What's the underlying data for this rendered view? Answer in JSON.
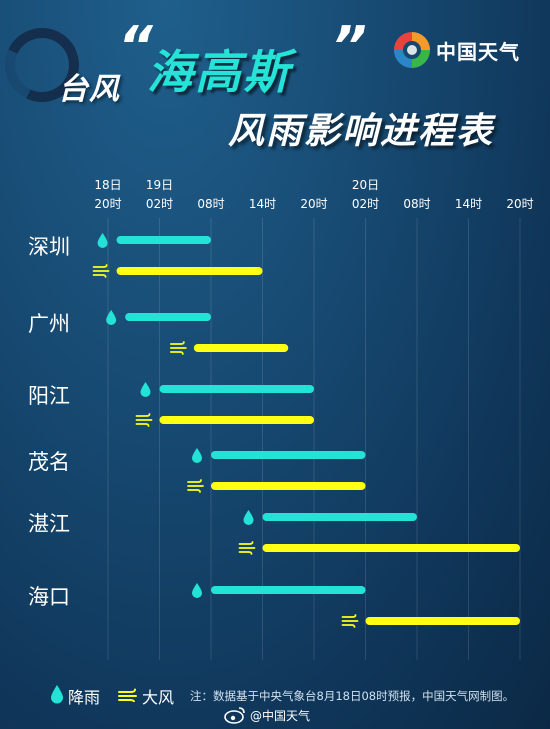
{
  "header": {
    "prefix": "台风",
    "quote_open": "“",
    "name": "海高斯",
    "quote_close": "”",
    "title": "风雨影响进程表"
  },
  "brand": {
    "text": "中国天气",
    "logo_icon": "china-weather-logo-icon"
  },
  "chart_data": {
    "type": "gantt",
    "time_axis": {
      "date_labels": [
        {
          "tick_index": 0,
          "text": "18日"
        },
        {
          "tick_index": 1,
          "text": "19日"
        },
        {
          "tick_index": 5,
          "text": "20日"
        }
      ],
      "ticks": [
        "20时",
        "02时",
        "08时",
        "14时",
        "20时",
        "02时",
        "08时",
        "14时",
        "20时"
      ],
      "tick_hours": [
        0,
        6,
        12,
        18,
        24,
        30,
        36,
        42,
        48
      ],
      "unit": "hours from 18日20时"
    },
    "series_types": [
      {
        "key": "rain",
        "label": "降雨",
        "color": "#22e3d6",
        "icon": "raindrop-icon"
      },
      {
        "key": "wind",
        "label": "大风",
        "color": "#ffff14",
        "icon": "wind-icon"
      }
    ],
    "cities": [
      {
        "name": "深圳",
        "rain": [
          1,
          12
        ],
        "wind": [
          1,
          18
        ]
      },
      {
        "name": "广州",
        "rain": [
          2,
          12
        ],
        "wind": [
          10,
          21
        ]
      },
      {
        "name": "阳江",
        "rain": [
          6,
          24
        ],
        "wind": [
          6,
          24
        ]
      },
      {
        "name": "茂名",
        "rain": [
          12,
          30
        ],
        "wind": [
          12,
          30
        ]
      },
      {
        "name": "湛江",
        "rain": [
          18,
          36
        ],
        "wind": [
          18,
          48
        ]
      },
      {
        "name": "海口",
        "rain": [
          12,
          30
        ],
        "wind": [
          30,
          48
        ]
      }
    ]
  },
  "legend": {
    "rain_label": "降雨",
    "wind_label": "大风"
  },
  "footer": {
    "note": "注：数据基于中央气象台8月18日08时预报，中国天气网制图。",
    "weibo": "@中国天气",
    "weibo_icon": "weibo-icon"
  }
}
